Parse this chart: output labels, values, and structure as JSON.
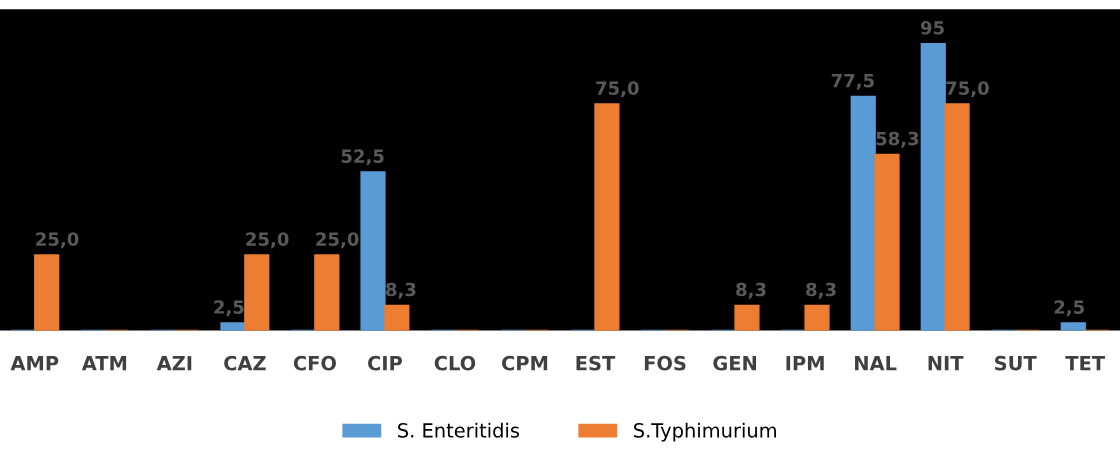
{
  "chart_data": {
    "type": "bar",
    "categories": [
      "AMP",
      "ATM",
      "AZI",
      "CAZ",
      "CFO",
      "CIP",
      "CLO",
      "CPM",
      "EST",
      "FOS",
      "GEN",
      "IPM",
      "NAL",
      "NIT",
      "SUT",
      "TET"
    ],
    "series": [
      {
        "name": "S. Enteritidis",
        "color": "#5b9bd5",
        "values": [
          0,
          0,
          0,
          2.5,
          0,
          52.5,
          0,
          0,
          0,
          0,
          0,
          0,
          77.5,
          95,
          0,
          2.5
        ],
        "value_labels": [
          null,
          null,
          null,
          "2,5",
          null,
          "52,5",
          null,
          null,
          null,
          null,
          null,
          null,
          "77,5",
          "95",
          null,
          "2,5"
        ]
      },
      {
        "name": "S.Typhimurium",
        "color": "#ed7d31",
        "values": [
          25,
          0,
          0,
          25,
          25,
          8.3,
          0,
          0,
          75,
          0,
          8.3,
          8.3,
          58.3,
          75,
          0,
          0
        ],
        "value_labels": [
          "25,0",
          null,
          null,
          "25,0",
          "25,0",
          "8,3",
          null,
          null,
          "75,0",
          null,
          "8,3",
          "8,3",
          "58,3",
          "75,0",
          null,
          null
        ]
      }
    ],
    "legend": "bottom",
    "grid": false
  }
}
